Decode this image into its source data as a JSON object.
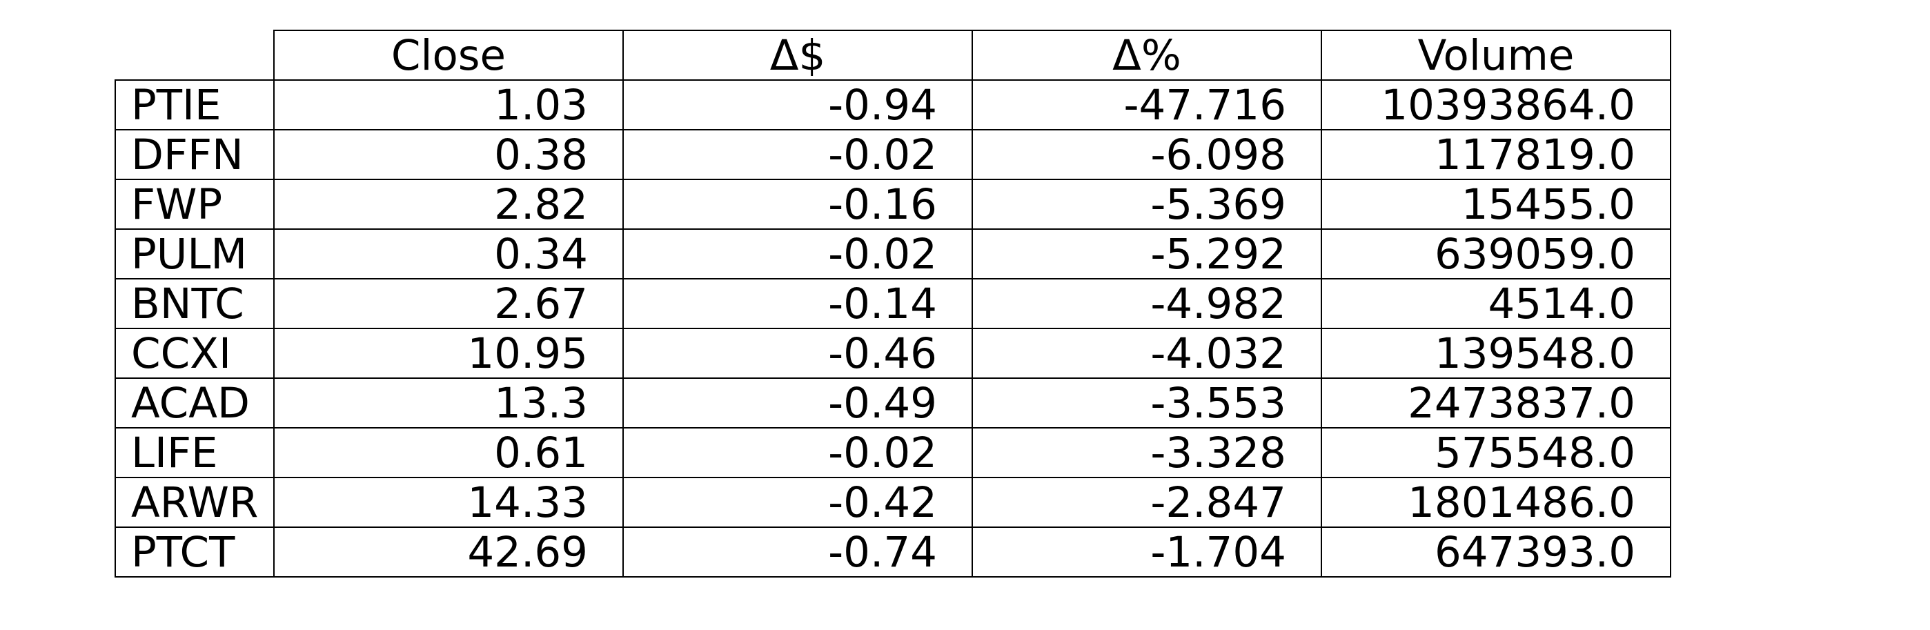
{
  "chart_data": {
    "type": "table",
    "columns": [
      "Close",
      "Δ$",
      "Δ%",
      "Volume"
    ],
    "rows": [
      {
        "ticker": "PTIE",
        "close": "1.03",
        "change": "-0.94",
        "change_pct": "-47.716",
        "volume": "10393864.0"
      },
      {
        "ticker": "DFFN",
        "close": "0.38",
        "change": "-0.02",
        "change_pct": "-6.098",
        "volume": "117819.0"
      },
      {
        "ticker": "FWP",
        "close": "2.82",
        "change": "-0.16",
        "change_pct": "-5.369",
        "volume": "15455.0"
      },
      {
        "ticker": "PULM",
        "close": "0.34",
        "change": "-0.02",
        "change_pct": "-5.292",
        "volume": "639059.0"
      },
      {
        "ticker": "BNTC",
        "close": "2.67",
        "change": "-0.14",
        "change_pct": "-4.982",
        "volume": "4514.0"
      },
      {
        "ticker": "CCXI",
        "close": "10.95",
        "change": "-0.46",
        "change_pct": "-4.032",
        "volume": "139548.0"
      },
      {
        "ticker": "ACAD",
        "close": "13.3",
        "change": "-0.49",
        "change_pct": "-3.553",
        "volume": "2473837.0"
      },
      {
        "ticker": "LIFE",
        "close": "0.61",
        "change": "-0.02",
        "change_pct": "-3.328",
        "volume": "575548.0"
      },
      {
        "ticker": "ARWR",
        "close": "14.33",
        "change": "-0.42",
        "change_pct": "-2.847",
        "volume": "1801486.0"
      },
      {
        "ticker": "PTCT",
        "close": "42.69",
        "change": "-0.74",
        "change_pct": "-1.704",
        "volume": "647393.0"
      }
    ]
  }
}
